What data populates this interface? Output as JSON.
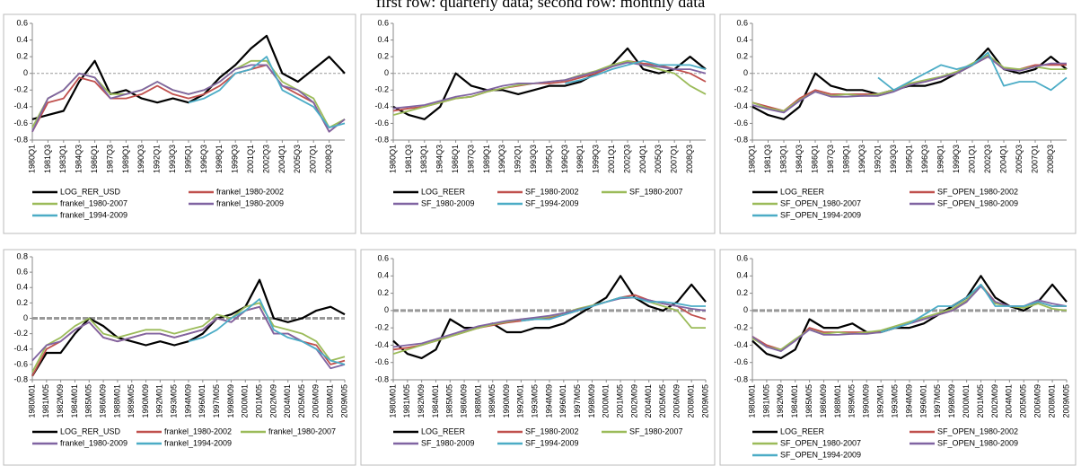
{
  "title": "first row: quarterly data; second row: monthly data",
  "chart_data": [
    {
      "type": "line",
      "ylim": [
        -0.8,
        0.6
      ],
      "yticks": [
        -0.8,
        -0.6,
        -0.4,
        -0.2,
        0,
        0.2,
        0.4,
        0.6
      ],
      "categories": [
        "1980Q1",
        "1981Q3",
        "1983Q1",
        "1984Q3",
        "1986Q1",
        "1987Q3",
        "1989Q1",
        "1990Q3",
        "1992Q1",
        "1993Q3",
        "1995Q1",
        "1996Q3",
        "1998Q1",
        "1999Q3",
        "2001Q1",
        "2002Q3",
        "2004Q1",
        "2005Q3",
        "2007Q1",
        "2008Q3",
        null
      ],
      "series": [
        {
          "name": "LOG_RER_USD",
          "color": "#000000",
          "values": [
            -0.55,
            -0.5,
            -0.45,
            -0.1,
            0.15,
            -0.25,
            -0.2,
            -0.3,
            -0.35,
            -0.3,
            -0.35,
            -0.25,
            -0.05,
            0.1,
            0.3,
            0.45,
            0,
            -0.1,
            0.05,
            0.2,
            0
          ]
        },
        {
          "name": "frankel_1980-2002",
          "color": "#c0504d",
          "values": [
            -0.7,
            -0.35,
            -0.3,
            -0.05,
            -0.1,
            -0.3,
            -0.3,
            -0.25,
            -0.15,
            -0.25,
            -0.3,
            -0.25,
            -0.15,
            0,
            0.05,
            0.1,
            -0.15,
            -0.25,
            -0.35,
            -0.7,
            -0.55
          ]
        },
        {
          "name": "frankel_1980-2007",
          "color": "#9bbb59",
          "values": [
            -0.65,
            -0.3,
            -0.2,
            0,
            -0.05,
            -0.25,
            -0.25,
            -0.2,
            -0.1,
            -0.2,
            -0.25,
            -0.2,
            -0.1,
            0.05,
            0.15,
            0.15,
            -0.1,
            -0.2,
            -0.3,
            -0.65,
            -0.55
          ]
        },
        {
          "name": "frankel_1980-2009",
          "color": "#8064a2",
          "values": [
            -0.7,
            -0.3,
            -0.2,
            0,
            -0.05,
            -0.3,
            -0.25,
            -0.2,
            -0.1,
            -0.2,
            -0.25,
            -0.2,
            -0.1,
            0.05,
            0.1,
            0.1,
            -0.15,
            -0.2,
            -0.35,
            -0.7,
            -0.55
          ]
        },
        {
          "name": "frankel_1994-2009",
          "color": "#4bacc6",
          "values": [
            null,
            null,
            null,
            null,
            null,
            null,
            null,
            null,
            null,
            null,
            -0.35,
            -0.3,
            -0.2,
            0,
            0.05,
            0.2,
            -0.2,
            -0.3,
            -0.4,
            -0.65,
            -0.6
          ]
        }
      ]
    },
    {
      "type": "line",
      "ylim": [
        -0.8,
        0.6
      ],
      "yticks": [
        -0.8,
        -0.6,
        -0.4,
        -0.2,
        0,
        0.2,
        0.4,
        0.6
      ],
      "categories": [
        "1980Q1",
        "1981Q3",
        "1983Q1",
        "1984Q3",
        "1986Q1",
        "1987Q3",
        "1989Q1",
        "1990Q3",
        "1992Q1",
        "1993Q3",
        "1995Q1",
        "1996Q3",
        "1998Q1",
        "1999Q3",
        "2001Q1",
        "2002Q3",
        "2004Q1",
        "2005Q3",
        "2007Q1",
        "2008Q3",
        null
      ],
      "series": [
        {
          "name": "LOG_REER",
          "color": "#000000",
          "values": [
            -0.4,
            -0.5,
            -0.55,
            -0.4,
            0,
            -0.15,
            -0.2,
            -0.2,
            -0.25,
            -0.2,
            -0.15,
            -0.15,
            -0.1,
            0,
            0.1,
            0.3,
            0.05,
            0,
            0.05,
            0.2,
            0.05
          ]
        },
        {
          "name": "SF_1980-2002",
          "color": "#c0504d",
          "values": [
            -0.45,
            -0.42,
            -0.4,
            -0.35,
            -0.3,
            -0.28,
            -0.22,
            -0.18,
            -0.15,
            -0.12,
            -0.12,
            -0.1,
            -0.05,
            0,
            0.08,
            0.15,
            0.12,
            0.1,
            0.05,
            0,
            -0.1
          ]
        },
        {
          "name": "SF_1980-2007",
          "color": "#9bbb59",
          "values": [
            -0.5,
            -0.45,
            -0.4,
            -0.35,
            -0.3,
            -0.28,
            -0.22,
            -0.18,
            -0.14,
            -0.12,
            -0.1,
            -0.08,
            -0.02,
            0.03,
            0.1,
            0.15,
            0.1,
            0.05,
            0,
            -0.15,
            -0.25
          ]
        },
        {
          "name": "SF_1980-2009",
          "color": "#8064a2",
          "values": [
            -0.42,
            -0.4,
            -0.38,
            -0.33,
            -0.28,
            -0.25,
            -0.2,
            -0.15,
            -0.12,
            -0.12,
            -0.1,
            -0.08,
            -0.03,
            0.02,
            0.08,
            0.13,
            0.1,
            0.08,
            0.05,
            0.05,
            0
          ]
        },
        {
          "name": "SF_1994-2009",
          "color": "#4bacc6",
          "values": [
            null,
            null,
            null,
            null,
            null,
            null,
            null,
            null,
            null,
            null,
            null,
            -0.12,
            -0.08,
            -0.02,
            0.05,
            0.1,
            0.15,
            0.1,
            0.1,
            0.1,
            0.05
          ]
        }
      ]
    },
    {
      "type": "line",
      "ylim": [
        -0.8,
        0.6
      ],
      "yticks": [
        -0.8,
        -0.6,
        -0.4,
        -0.2,
        0,
        0.2,
        0.4,
        0.6
      ],
      "categories": [
        "1980Q1",
        "1981Q3",
        "1983Q1",
        "1984Q3",
        "1986Q1",
        "1987Q3",
        "1989Q1",
        "1990Q3",
        "1992Q1",
        "1993Q3",
        "1995Q1",
        "1996Q3",
        "1998Q1",
        "1999Q3",
        "2001Q1",
        "2002Q3",
        "2004Q1",
        "2005Q3",
        "2007Q1",
        "2008Q3",
        null
      ],
      "series": [
        {
          "name": "LOG_REER",
          "color": "#000000",
          "values": [
            -0.4,
            -0.5,
            -0.55,
            -0.4,
            0,
            -0.15,
            -0.2,
            -0.2,
            -0.25,
            -0.2,
            -0.15,
            -0.15,
            -0.1,
            0,
            0.1,
            0.3,
            0.05,
            0,
            0.05,
            0.2,
            0.05
          ]
        },
        {
          "name": "SF_OPEN_1980-2002",
          "color": "#c0504d",
          "values": [
            -0.35,
            -0.4,
            -0.45,
            -0.3,
            -0.2,
            -0.25,
            -0.25,
            -0.25,
            -0.25,
            -0.2,
            -0.12,
            -0.1,
            -0.05,
            0,
            0.1,
            0.2,
            0.05,
            0.05,
            0.1,
            0.1,
            0.1
          ]
        },
        {
          "name": "SF_OPEN_1980-2007",
          "color": "#9bbb59",
          "values": [
            -0.35,
            -0.42,
            -0.45,
            -0.32,
            -0.22,
            -0.27,
            -0.25,
            -0.27,
            -0.25,
            -0.2,
            -0.12,
            -0.08,
            -0.04,
            0.02,
            0.12,
            0.22,
            0.07,
            0.05,
            0.08,
            0.05,
            0.05
          ]
        },
        {
          "name": "SF_OPEN_1980-2009",
          "color": "#8064a2",
          "values": [
            -0.38,
            -0.43,
            -0.47,
            -0.33,
            -0.22,
            -0.28,
            -0.28,
            -0.27,
            -0.27,
            -0.22,
            -0.14,
            -0.1,
            -0.05,
            0,
            0.1,
            0.2,
            0.05,
            0.03,
            0.08,
            0.12,
            0.12
          ]
        },
        {
          "name": "SF_OPEN_1994-2009",
          "color": "#4bacc6",
          "values": [
            null,
            null,
            null,
            null,
            null,
            null,
            null,
            null,
            -0.05,
            -0.2,
            -0.1,
            0,
            0.1,
            0.05,
            0.1,
            0.25,
            -0.15,
            -0.1,
            -0.1,
            -0.2,
            -0.05
          ]
        }
      ]
    },
    {
      "type": "line",
      "ylim": [
        -0.8,
        0.8
      ],
      "yticks": [
        -0.8,
        -0.6,
        -0.4,
        -0.2,
        0,
        0.2,
        0.4,
        0.6,
        0.8
      ],
      "categories": [
        "1980M01",
        "1981M05",
        "1982M09",
        "1984M01",
        "1985M05",
        "1986M09",
        "1988M01",
        "1989M05",
        "1990M09",
        "1992M01",
        "1993M05",
        "1994M09",
        "1996M01",
        "1997M05",
        "1998M09",
        "2000M01",
        "2001M05",
        "2002M09",
        "2004M01",
        "2005M05",
        "2006M09",
        "2008M01",
        "2009M05"
      ],
      "series": [
        {
          "name": "LOG_RER_USD",
          "color": "#000000",
          "values": [
            -0.75,
            -0.45,
            -0.45,
            -0.2,
            0,
            -0.1,
            -0.25,
            -0.3,
            -0.35,
            -0.3,
            -0.35,
            -0.3,
            -0.2,
            0,
            0.05,
            0.15,
            0.5,
            0,
            -0.05,
            0,
            0.1,
            0.15,
            0.05
          ]
        },
        {
          "name": "frankel_1980-2002",
          "color": "#c0504d",
          "values": [
            -0.75,
            -0.4,
            -0.3,
            -0.15,
            -0.05,
            -0.25,
            -0.3,
            -0.25,
            -0.2,
            -0.2,
            -0.25,
            -0.2,
            -0.15,
            0,
            -0.05,
            0.1,
            0.15,
            -0.2,
            -0.2,
            -0.3,
            -0.35,
            -0.6,
            -0.55
          ]
        },
        {
          "name": "frankel_1980-2007",
          "color": "#9bbb59",
          "values": [
            -0.7,
            -0.35,
            -0.25,
            -0.1,
            0,
            -0.2,
            -0.25,
            -0.2,
            -0.15,
            -0.15,
            -0.2,
            -0.15,
            -0.1,
            0.05,
            0,
            0.15,
            0.2,
            -0.1,
            -0.15,
            -0.2,
            -0.3,
            -0.55,
            -0.5
          ]
        },
        {
          "name": "frankel_1980-2009",
          "color": "#8064a2",
          "values": [
            -0.55,
            -0.35,
            -0.3,
            -0.15,
            -0.05,
            -0.25,
            -0.3,
            -0.25,
            -0.2,
            -0.2,
            -0.25,
            -0.2,
            -0.15,
            0,
            -0.05,
            0.1,
            0.15,
            -0.2,
            -0.2,
            -0.3,
            -0.4,
            -0.65,
            -0.6
          ]
        },
        {
          "name": "frankel_1994-2009",
          "color": "#4bacc6",
          "values": [
            null,
            null,
            null,
            null,
            null,
            null,
            null,
            null,
            null,
            null,
            null,
            -0.3,
            -0.25,
            -0.15,
            0,
            0.1,
            0.25,
            -0.15,
            -0.25,
            -0.3,
            -0.4,
            -0.55,
            -0.6
          ]
        }
      ]
    },
    {
      "type": "line",
      "ylim": [
        -0.8,
        0.6
      ],
      "yticks": [
        -0.8,
        -0.6,
        -0.4,
        -0.2,
        0,
        0.2,
        0.4,
        0.6
      ],
      "categories": [
        "1980M01",
        "1981M05",
        "1982M09",
        "1984M01",
        "1985M05",
        "1986M09",
        "1988M01",
        "1989M05",
        "1990M09",
        "1992M01",
        "1993M05",
        "1994M09",
        "1996M01",
        "1997M05",
        "1998M09",
        "2000M01",
        "2001M05",
        "2002M09",
        "2004M01",
        "2005M05",
        "2006M09",
        "2008M01",
        "2009M05"
      ],
      "series": [
        {
          "name": "LOG_REER",
          "color": "#000000",
          "values": [
            -0.35,
            -0.5,
            -0.55,
            -0.45,
            -0.1,
            -0.2,
            -0.2,
            -0.15,
            -0.25,
            -0.25,
            -0.2,
            -0.2,
            -0.15,
            -0.05,
            0.05,
            0.15,
            0.4,
            0.15,
            0.05,
            0,
            0.1,
            0.3,
            0.1
          ]
        },
        {
          "name": "SF_1980-2002",
          "color": "#c0504d",
          "values": [
            -0.45,
            -0.43,
            -0.4,
            -0.35,
            -0.3,
            -0.25,
            -0.2,
            -0.17,
            -0.14,
            -0.12,
            -0.1,
            -0.08,
            -0.05,
            0,
            0.05,
            0.1,
            0.15,
            0.18,
            0.12,
            0.08,
            0.05,
            -0.05,
            -0.1
          ]
        },
        {
          "name": "SF_1980-2007",
          "color": "#9bbb59",
          "values": [
            -0.5,
            -0.45,
            -0.4,
            -0.35,
            -0.3,
            -0.25,
            -0.2,
            -0.16,
            -0.13,
            -0.1,
            -0.09,
            -0.07,
            -0.03,
            0.02,
            0.06,
            0.1,
            0.15,
            0.15,
            0.1,
            0.05,
            0,
            -0.2,
            -0.2
          ]
        },
        {
          "name": "SF_1980-2009",
          "color": "#8064a2",
          "values": [
            -0.42,
            -0.4,
            -0.38,
            -0.33,
            -0.28,
            -0.23,
            -0.18,
            -0.15,
            -0.12,
            -0.1,
            -0.08,
            -0.06,
            -0.03,
            0.01,
            0.05,
            0.1,
            0.14,
            0.15,
            0.12,
            0.08,
            0.05,
            0.02,
            0
          ]
        },
        {
          "name": "SF_1994-2009",
          "color": "#4bacc6",
          "values": [
            null,
            null,
            null,
            null,
            null,
            null,
            null,
            null,
            null,
            -0.12,
            -0.1,
            -0.1,
            -0.05,
            0,
            0.05,
            0.1,
            0.15,
            0.15,
            0.1,
            0.1,
            0.08,
            0.05,
            0.05
          ]
        }
      ]
    },
    {
      "type": "line",
      "ylim": [
        -0.8,
        0.6
      ],
      "yticks": [
        -0.8,
        -0.6,
        -0.4,
        -0.2,
        0,
        0.2,
        0.4,
        0.6
      ],
      "categories": [
        "1980M01",
        "1981M05",
        "1982M09",
        "1984M01",
        "1985M05",
        "1986M09",
        "1988M01",
        "1989M05",
        "1990M09",
        "1992M01",
        "1993M05",
        "1994M09",
        "1996M01",
        "1997M05",
        "1998M09",
        "2000M01",
        "2001M05",
        "2002M09",
        "2004M01",
        "2005M05",
        "2006M09",
        "2008M01",
        "2009M05"
      ],
      "series": [
        {
          "name": "LOG_REER",
          "color": "#000000",
          "values": [
            -0.35,
            -0.5,
            -0.55,
            -0.45,
            -0.1,
            -0.2,
            -0.2,
            -0.15,
            -0.25,
            -0.25,
            -0.2,
            -0.2,
            -0.15,
            -0.05,
            0.05,
            0.15,
            0.4,
            0.15,
            0.05,
            0,
            0.1,
            0.3,
            0.1
          ]
        },
        {
          "name": "SF_OPEN_1980-2002",
          "color": "#c0504d",
          "values": [
            -0.3,
            -0.4,
            -0.45,
            -0.35,
            -0.2,
            -0.25,
            -0.25,
            -0.25,
            -0.25,
            -0.25,
            -0.2,
            -0.15,
            -0.1,
            -0.05,
            0,
            0.1,
            0.3,
            0.1,
            0.05,
            0.05,
            0.1,
            0.05,
            0.05
          ]
        },
        {
          "name": "SF_OPEN_1980-2007",
          "color": "#9bbb59",
          "values": [
            -0.32,
            -0.42,
            -0.45,
            -0.33,
            -0.22,
            -0.27,
            -0.25,
            -0.27,
            -0.25,
            -0.23,
            -0.18,
            -0.13,
            -0.08,
            -0.03,
            0.02,
            0.12,
            0.3,
            0.08,
            0.05,
            0.03,
            0.08,
            0.02,
            0
          ]
        },
        {
          "name": "SF_OPEN_1980-2009",
          "color": "#8064a2",
          "values": [
            -0.3,
            -0.42,
            -0.47,
            -0.35,
            -0.22,
            -0.28,
            -0.28,
            -0.27,
            -0.27,
            -0.25,
            -0.2,
            -0.15,
            -0.1,
            -0.05,
            0,
            0.1,
            0.28,
            0.1,
            0.05,
            0.05,
            0.12,
            0.08,
            0.05
          ]
        },
        {
          "name": "SF_OPEN_1994-2009",
          "color": "#4bacc6",
          "values": [
            null,
            null,
            null,
            null,
            null,
            null,
            null,
            null,
            null,
            -0.25,
            -0.2,
            -0.15,
            -0.05,
            0.05,
            0.05,
            0.15,
            0.3,
            0.05,
            0.05,
            0.05,
            0.1,
            0.05,
            0.05
          ]
        }
      ]
    }
  ]
}
